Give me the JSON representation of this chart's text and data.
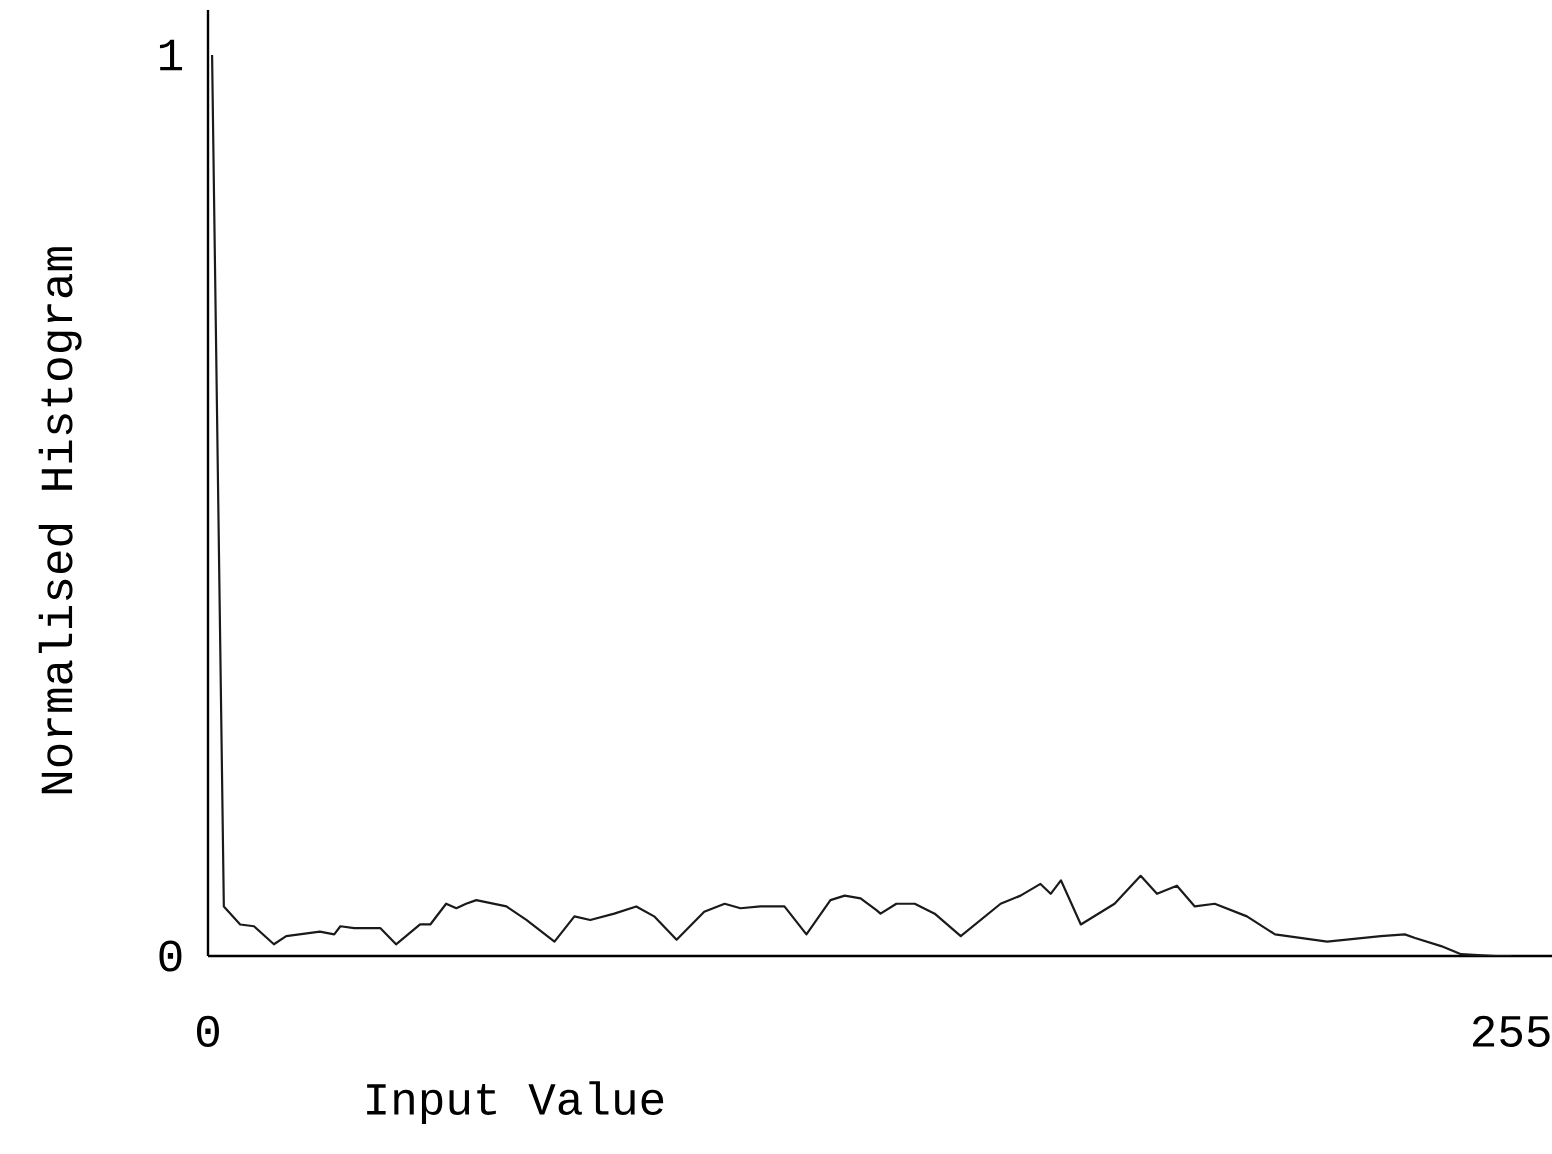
{
  "chart_data": {
    "type": "line",
    "xlabel": "Input Value",
    "ylabel": "Normalised Histogram",
    "xlim": [
      0,
      263
    ],
    "ylim": [
      0,
      1.05
    ],
    "xticks": [
      0,
      255
    ],
    "yticks": [
      0,
      1
    ],
    "grid": false,
    "marker": "none",
    "line_style": "solid",
    "series": [
      {
        "color": "#1a1a1a",
        "x": [
          0.8,
          3.1,
          6.3,
          9.0,
          12.9,
          15.3,
          21.9,
          24.7,
          25.9,
          28.6,
          33.7,
          36.8,
          41.5,
          43.5,
          46.6,
          48.6,
          50.5,
          52.5,
          58.4,
          62.3,
          67.8,
          71.7,
          74.8,
          79.5,
          83.8,
          87.3,
          91.7,
          97.1,
          101.1,
          104.2,
          108.1,
          112.8,
          117.1,
          121.8,
          124.6,
          127.7,
          130.8,
          131.6,
          134.7,
          138.3,
          142.2,
          147.3,
          155.1,
          159.0,
          162.9,
          164.9,
          166.9,
          170.8,
          177.4,
          182.5,
          185.7,
          189.6,
          193.1,
          197.0,
          203.3,
          208.8,
          219.0,
          229.5,
          234.2,
          236.2,
          241.3,
          245.2,
          251.9,
          255
        ],
        "values": [
          1.0,
          0.055,
          0.035,
          0.033,
          0.013,
          0.022,
          0.027,
          0.024,
          0.033,
          0.031,
          0.031,
          0.013,
          0.035,
          0.035,
          0.058,
          0.053,
          0.058,
          0.062,
          0.055,
          0.04,
          0.016,
          0.044,
          0.04,
          0.047,
          0.055,
          0.044,
          0.018,
          0.049,
          0.058,
          0.053,
          0.055,
          0.055,
          0.024,
          0.062,
          0.067,
          0.064,
          0.051,
          0.047,
          0.058,
          0.058,
          0.047,
          0.022,
          0.058,
          0.067,
          0.08,
          0.069,
          0.084,
          0.035,
          0.058,
          0.089,
          0.069,
          0.078,
          0.055,
          0.058,
          0.044,
          0.024,
          0.016,
          0.022,
          0.024,
          0.02,
          0.011,
          0.002,
          0,
          0
        ]
      }
    ]
  }
}
